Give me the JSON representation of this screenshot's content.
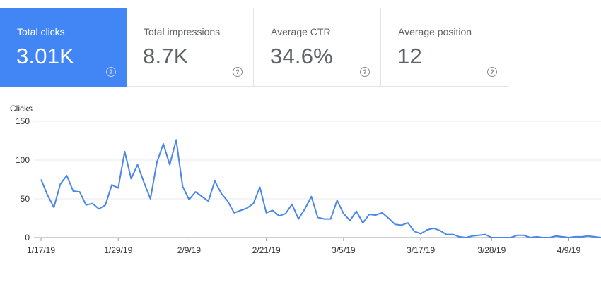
{
  "cards": [
    {
      "label": "Total clicks",
      "value": "3.01K",
      "active": true
    },
    {
      "label": "Total impressions",
      "value": "8.7K",
      "active": false
    },
    {
      "label": "Average CTR",
      "value": "34.6%",
      "active": false
    },
    {
      "label": "Average position",
      "value": "12",
      "active": false
    }
  ],
  "icons": {
    "help": "help-circle-icon",
    "help_glyph": "?"
  },
  "colors": {
    "accent": "#4285f4",
    "line": "#4a87e8",
    "grid": "#e8e8e8"
  },
  "chart_data": {
    "type": "line",
    "ylabel": "Clicks",
    "ylim": [
      0,
      150
    ],
    "yticks": [
      0,
      50,
      100,
      150
    ],
    "xticks": [
      "1/17/19",
      "1/29/19",
      "2/9/19",
      "2/21/19",
      "3/5/19",
      "3/17/19",
      "3/28/19",
      "4/9/19"
    ],
    "xtick_index": [
      0,
      12,
      23,
      35,
      47,
      59,
      70,
      82
    ],
    "grid": true,
    "series": [
      {
        "name": "",
        "values": [
          75,
          55,
          39,
          69,
          80,
          60,
          59,
          42,
          44,
          37,
          42,
          68,
          64,
          111,
          76,
          94,
          71,
          50,
          97,
          121,
          94,
          126,
          66,
          49,
          59,
          53,
          47,
          73,
          57,
          47,
          32,
          35,
          38,
          44,
          65,
          32,
          35,
          28,
          31,
          43,
          24,
          37,
          53,
          26,
          24,
          24,
          48,
          31,
          22,
          34,
          19,
          30,
          29,
          32,
          25,
          17,
          16,
          19,
          8,
          5,
          10,
          12,
          9,
          4,
          4,
          1,
          0,
          2,
          3,
          4,
          0,
          0,
          0,
          0,
          3,
          3,
          0,
          1,
          0,
          0,
          2,
          1,
          0,
          1,
          1,
          2,
          1,
          0
        ]
      }
    ]
  }
}
